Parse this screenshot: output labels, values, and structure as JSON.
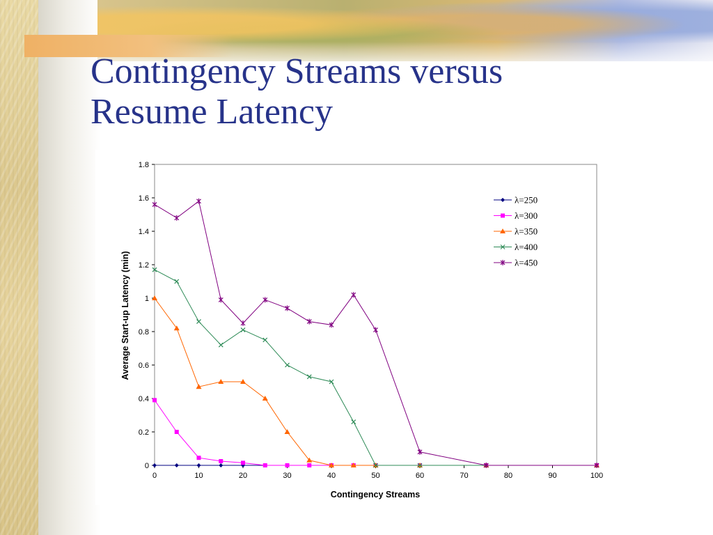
{
  "slide": {
    "title_line1": "Contingency Streams versus",
    "title_line2": "Resume Latency"
  },
  "chart_data": {
    "type": "line",
    "title": "",
    "xlabel": "Contingency Streams",
    "ylabel": "Average Start-up Latency (min)",
    "xlim": [
      0,
      100
    ],
    "ylim": [
      0,
      1.8
    ],
    "xticks": [
      0,
      10,
      20,
      30,
      40,
      50,
      60,
      70,
      80,
      90,
      100
    ],
    "yticks": [
      0,
      0.2,
      0.4,
      0.6,
      0.8,
      1,
      1.2,
      1.4,
      1.6,
      1.8
    ],
    "grid": false,
    "legend_position": "top-right",
    "series": [
      {
        "name": "λ=250",
        "color": "#000080",
        "marker": "diamond",
        "x": [
          0,
          5,
          10,
          15,
          20,
          25,
          30,
          35,
          40,
          45,
          50,
          60,
          75,
          100
        ],
        "y": [
          0,
          0,
          0,
          0,
          0,
          0,
          0,
          0,
          0,
          0,
          0,
          0,
          0,
          0
        ]
      },
      {
        "name": "λ=300",
        "color": "#ff00ff",
        "marker": "square",
        "x": [
          0,
          5,
          10,
          15,
          20,
          25,
          30,
          35,
          40,
          45,
          50,
          60,
          75,
          100
        ],
        "y": [
          0.39,
          0.2,
          0.045,
          0.025,
          0.015,
          0,
          0,
          0,
          0,
          0,
          0,
          0,
          0,
          0
        ]
      },
      {
        "name": "λ=350",
        "color": "#ff6600",
        "marker": "triangle",
        "x": [
          0,
          5,
          10,
          15,
          20,
          25,
          30,
          35,
          40,
          45,
          50,
          60,
          75,
          100
        ],
        "y": [
          1.0,
          0.82,
          0.47,
          0.5,
          0.5,
          0.4,
          0.2,
          0.03,
          0,
          0,
          0,
          0,
          0,
          0
        ]
      },
      {
        "name": "λ=400",
        "color": "#2e8b57",
        "marker": "x",
        "x": [
          0,
          5,
          10,
          15,
          20,
          25,
          30,
          35,
          40,
          45,
          50,
          60,
          75,
          100
        ],
        "y": [
          1.17,
          1.1,
          0.86,
          0.72,
          0.81,
          0.75,
          0.6,
          0.53,
          0.5,
          0.26,
          0,
          0,
          0,
          0
        ]
      },
      {
        "name": "λ=450",
        "color": "#800080",
        "marker": "star",
        "x": [
          0,
          5,
          10,
          15,
          20,
          25,
          30,
          35,
          40,
          45,
          50,
          60,
          75,
          100
        ],
        "y": [
          1.56,
          1.48,
          1.58,
          0.99,
          0.85,
          0.99,
          0.94,
          0.86,
          0.84,
          1.02,
          0.81,
          0.08,
          0,
          0
        ]
      }
    ]
  }
}
